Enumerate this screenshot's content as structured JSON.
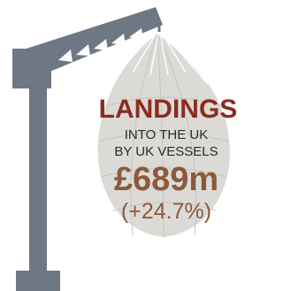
{
  "heading": "LANDINGS",
  "subheading": [
    "INTO THE UK",
    "BY UK VESSELS"
  ],
  "value": "£689m",
  "change": "(+24.7%)"
}
